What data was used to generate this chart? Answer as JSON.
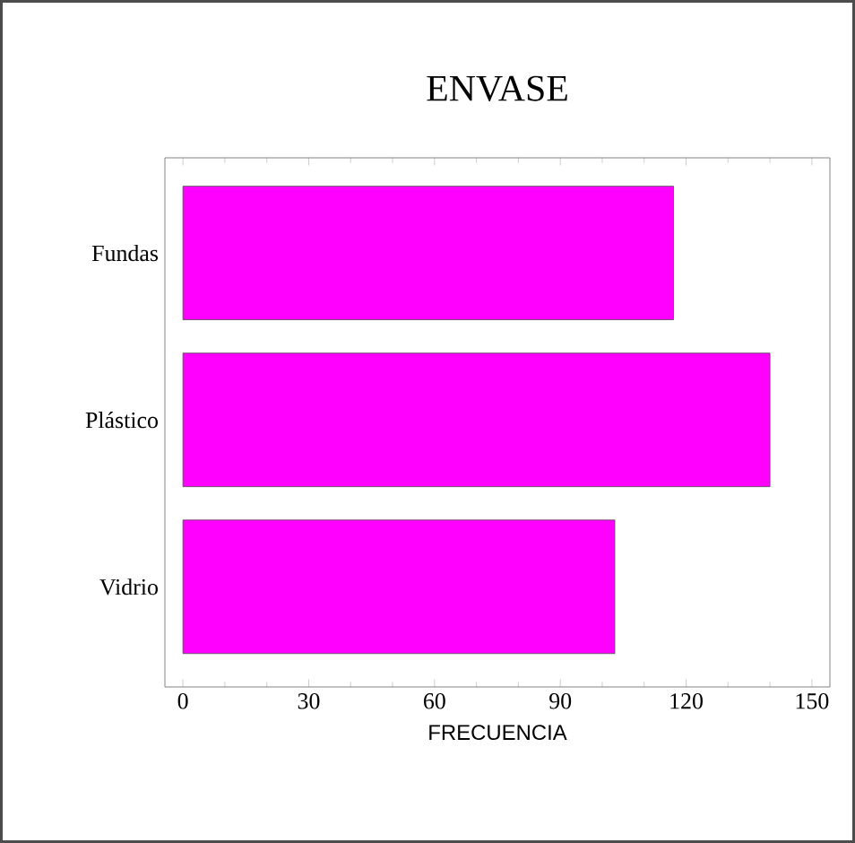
{
  "chart_data": {
    "type": "bar",
    "orientation": "horizontal",
    "title": "ENVASE",
    "xlabel": "FRECUENCIA",
    "categories": [
      "Fundas",
      "Plástico",
      "Vidrio"
    ],
    "values": [
      117,
      140,
      103
    ],
    "color": "#ff00ff",
    "xlim": [
      -4.3,
      154.3
    ],
    "xticks": [
      0,
      30,
      60,
      90,
      120,
      150
    ]
  }
}
